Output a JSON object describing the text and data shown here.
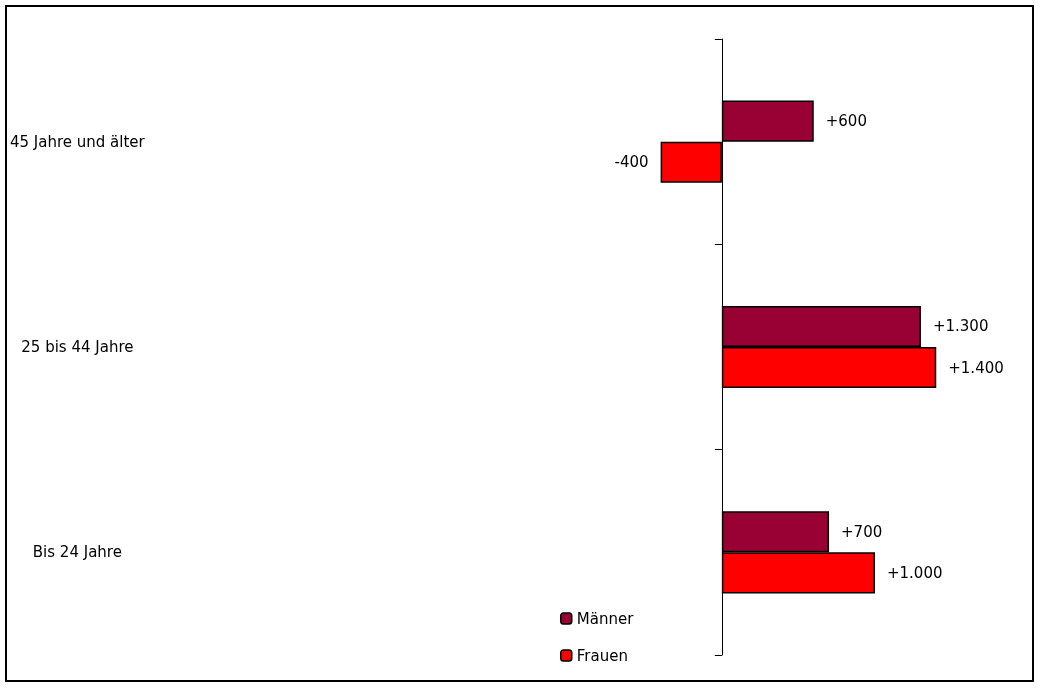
{
  "chart_data": {
    "type": "bar",
    "orientation": "horizontal",
    "categories": [
      "45 Jahre und älter",
      "25 bis 44 Jahre",
      "Bis 24 Jahre"
    ],
    "series": [
      {
        "name": "Männer",
        "color": "#990033",
        "values": [
          600,
          1300,
          700
        ],
        "value_labels": [
          "+600",
          "+1.300",
          "+700"
        ]
      },
      {
        "name": "Frauen",
        "color": "#ff0000",
        "values": [
          -400,
          1400,
          1000
        ],
        "value_labels": [
          "-400",
          "+1.400",
          "+1.000"
        ]
      }
    ],
    "tick_labels": "y",
    "legend": "bottom"
  }
}
